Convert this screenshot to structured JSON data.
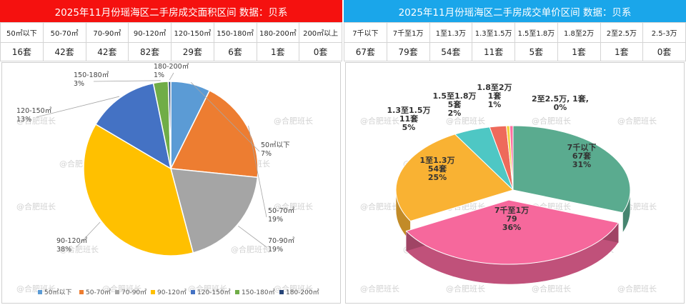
{
  "left": {
    "title": "2025年11月份瑶海区二手房成交面积区间 数据：贝系",
    "table": [
      {
        "range": "50㎡以下",
        "count": "16套"
      },
      {
        "range": "50-70㎡",
        "count": "42套"
      },
      {
        "range": "70-90㎡",
        "count": "42套"
      },
      {
        "range": "90-120㎡",
        "count": "82套"
      },
      {
        "range": "120-150㎡",
        "count": "29套"
      },
      {
        "range": "150-180㎡",
        "count": "6套"
      },
      {
        "range": "180-200㎡",
        "count": "1套"
      },
      {
        "range": "200㎡以上",
        "count": "0套"
      }
    ]
  },
  "right": {
    "title": "2025年11月份瑶海区二手房成交单价区间 数据：贝系",
    "table": [
      {
        "range": "7千以下",
        "count": "67套"
      },
      {
        "range": "7千至1万",
        "count": "79套"
      },
      {
        "range": "1至1.3万",
        "count": "54套"
      },
      {
        "range": "1.3至1.5万",
        "count": "11套"
      },
      {
        "range": "1.5至1.8万",
        "count": "5套"
      },
      {
        "range": "1.8至2万",
        "count": "1套"
      },
      {
        "range": "2至2.5万",
        "count": "1套"
      },
      {
        "range": "2.5-3万",
        "count": "0套"
      }
    ]
  },
  "watermark": "@合肥班长",
  "chart_data": [
    {
      "type": "pie",
      "categories": [
        "50㎡以下",
        "50-70㎡",
        "70-90㎡",
        "90-120㎡",
        "120-150㎡",
        "150-180㎡",
        "180-200㎡"
      ],
      "values": [
        16,
        42,
        42,
        82,
        29,
        6,
        1
      ],
      "labels": [
        {
          "name": "50㎡以下",
          "pct": "7%"
        },
        {
          "name": "50-70㎡",
          "pct": "19%"
        },
        {
          "name": "70-90㎡",
          "pct": "19%"
        },
        {
          "name": "90-120㎡",
          "pct": "38%"
        },
        {
          "name": "120-150㎡",
          "pct": "13%"
        },
        {
          "name": "150-180㎡",
          "pct": "3%"
        },
        {
          "name": "180-200㎡",
          "pct": "1%"
        }
      ],
      "colors": [
        "#5b9bd5",
        "#ed7d31",
        "#a5a5a5",
        "#ffc000",
        "#4472c4",
        "#70ad47",
        "#264478"
      ],
      "legend": "bottom"
    },
    {
      "type": "pie",
      "categories": [
        "7千以下",
        "7千至1万",
        "1至1.3万",
        "1.3至1.5万",
        "1.5至1.8万",
        "1.8至2万",
        "2至2.5万"
      ],
      "values": [
        67,
        79,
        54,
        11,
        5,
        1,
        1
      ],
      "labels": [
        {
          "lines": [
            "7千以下",
            "67套",
            "31%"
          ]
        },
        {
          "lines": [
            "7千至1万",
            "79",
            "36%"
          ]
        },
        {
          "lines": [
            "1至1.3万",
            "54套",
            "25%"
          ]
        },
        {
          "lines": [
            "1.3至1.5万",
            "11套",
            "5%"
          ]
        },
        {
          "lines": [
            "1.5至1.8万",
            "5套",
            "2%"
          ]
        },
        {
          "lines": [
            "1.8至2万",
            "1套",
            "1%"
          ]
        },
        {
          "lines": [
            "2至2.5万, 1套,",
            "0%"
          ]
        }
      ],
      "colors": [
        "#5aab8f",
        "#f6689c",
        "#f9b233",
        "#4ec7c4",
        "#ee6a5b",
        "#f3d13e",
        "#ff6fa0"
      ],
      "legend": "none"
    }
  ]
}
